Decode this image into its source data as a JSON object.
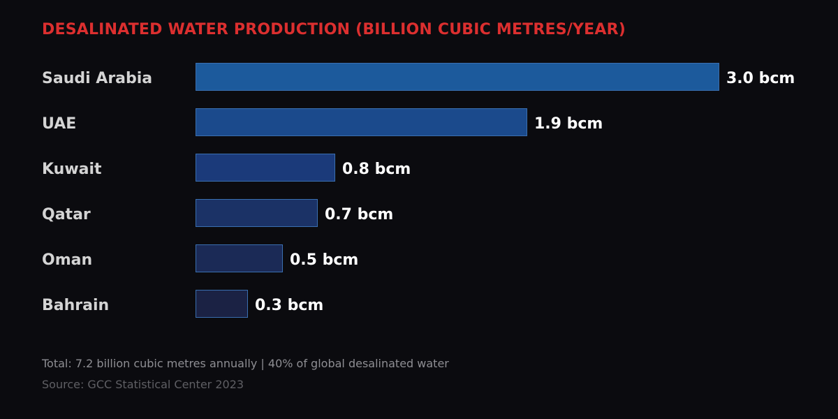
{
  "title": "DESALINATED WATER PRODUCTION (BILLION CUBIC METRES/YEAR)",
  "footer": {
    "total": "Total: 7.2 billion cubic metres annually | 40% of global desalinated water",
    "source": "Source: GCC Statistical Center 2023"
  },
  "rows": [
    {
      "country": "Saudi Arabia",
      "value": 3.0,
      "label": "3.0 bcm",
      "color": "#1c5a9c"
    },
    {
      "country": "UAE",
      "value": 1.9,
      "label": "1.9 bcm",
      "color": "#1b4a8c"
    },
    {
      "country": "Kuwait",
      "value": 0.8,
      "label": "0.8 bcm",
      "color": "#1b3a7a"
    },
    {
      "country": "Qatar",
      "value": 0.7,
      "label": "0.7 bcm",
      "color": "#1b3266"
    },
    {
      "country": "Oman",
      "value": 0.5,
      "label": "0.5 bcm",
      "color": "#1b2a56"
    },
    {
      "country": "Bahrain",
      "value": 0.3,
      "label": "0.3 bcm",
      "color": "#1b2244"
    }
  ],
  "chart_data": {
    "type": "bar",
    "orientation": "horizontal",
    "title": "DESALINATED WATER PRODUCTION (BILLION CUBIC METRES/YEAR)",
    "categories": [
      "Saudi Arabia",
      "UAE",
      "Kuwait",
      "Qatar",
      "Oman",
      "Bahrain"
    ],
    "values": [
      3.0,
      1.9,
      0.8,
      0.7,
      0.5,
      0.3
    ],
    "data_labels": [
      "3.0 bcm",
      "1.9 bcm",
      "0.8 bcm",
      "0.7 bcm",
      "0.5 bcm",
      "0.3 bcm"
    ],
    "unit": "bcm",
    "xlabel": "",
    "ylabel": "",
    "xlim": [
      0,
      3.0
    ],
    "grid": false,
    "legend": null,
    "annotations": [
      "Total: 7.2 billion cubic metres annually | 40% of global desalinated water",
      "Source: GCC Statistical Center 2023"
    ]
  }
}
